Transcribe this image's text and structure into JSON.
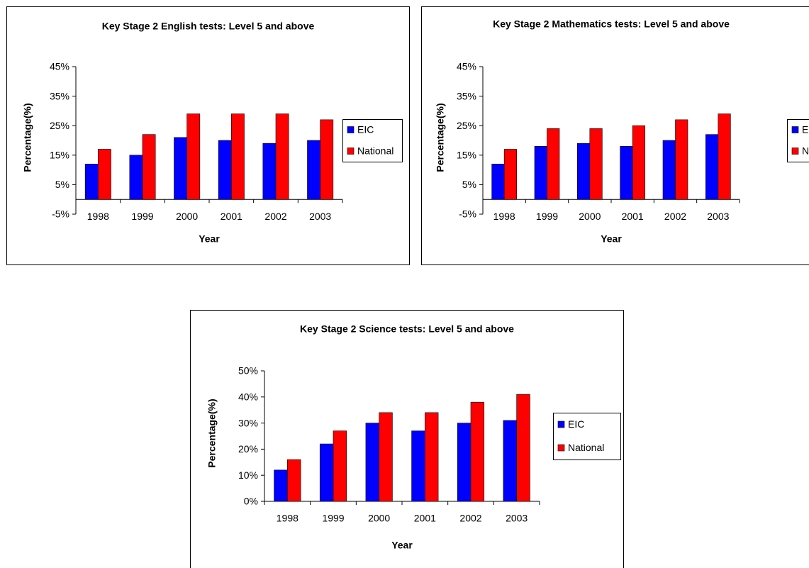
{
  "chart_data": [
    {
      "type": "bar",
      "title": "Key Stage 2 English tests: Level 5 and above",
      "x_label": "Year",
      "y_label": "Percentage(%)",
      "categories": [
        "1998",
        "1999",
        "2000",
        "2001",
        "2002",
        "2003"
      ],
      "series": [
        {
          "name": "EIC",
          "color": "#0000ff",
          "values": [
            12,
            15,
            21,
            20,
            19,
            20
          ]
        },
        {
          "name": "National",
          "color": "#ff0000",
          "values": [
            17,
            22,
            29,
            29,
            29,
            27
          ]
        }
      ],
      "ylim": [
        -5,
        45
      ],
      "yticks": [
        {
          "value": -5,
          "label": "-5%"
        },
        {
          "value": 5,
          "label": "5%"
        },
        {
          "value": 15,
          "label": "15%"
        },
        {
          "value": 25,
          "label": "25%"
        },
        {
          "value": 35,
          "label": "35%"
        },
        {
          "value": 45,
          "label": "45%"
        }
      ],
      "grid": false,
      "legend": "right"
    },
    {
      "type": "bar",
      "title": "Key Stage 2 Mathematics tests: Level 5 and above",
      "x_label": "Year",
      "y_label": "Percentage(%)",
      "categories": [
        "1998",
        "1999",
        "2000",
        "2001",
        "2002",
        "2003"
      ],
      "series": [
        {
          "name": "EIC",
          "color": "#0000ff",
          "values": [
            12,
            18,
            19,
            18,
            20,
            22
          ]
        },
        {
          "name": "National",
          "color": "#ff0000",
          "values": [
            17,
            24,
            24,
            25,
            27,
            29
          ]
        }
      ],
      "ylim": [
        -5,
        45
      ],
      "yticks": [
        {
          "value": -5,
          "label": "-5%"
        },
        {
          "value": 5,
          "label": "5%"
        },
        {
          "value": 15,
          "label": "15%"
        },
        {
          "value": 25,
          "label": "25%"
        },
        {
          "value": 35,
          "label": "35%"
        },
        {
          "value": 45,
          "label": "45%"
        }
      ],
      "grid": false,
      "legend": "right"
    },
    {
      "type": "bar",
      "title": "Key Stage 2 Science tests: Level 5 and above",
      "x_label": "Year",
      "y_label": "Percentage(%)",
      "categories": [
        "1998",
        "1999",
        "2000",
        "2001",
        "2002",
        "2003"
      ],
      "series": [
        {
          "name": "EIC",
          "color": "#0000ff",
          "values": [
            12,
            22,
            30,
            27,
            30,
            31
          ]
        },
        {
          "name": "National",
          "color": "#ff0000",
          "values": [
            16,
            27,
            34,
            34,
            38,
            41
          ]
        }
      ],
      "ylim": [
        0,
        50
      ],
      "yticks": [
        {
          "value": 0,
          "label": "0%"
        },
        {
          "value": 10,
          "label": "10%"
        },
        {
          "value": 20,
          "label": "20%"
        },
        {
          "value": 30,
          "label": "30%"
        },
        {
          "value": 40,
          "label": "40%"
        },
        {
          "value": 50,
          "label": "50%"
        }
      ],
      "grid": false,
      "legend": "right"
    }
  ]
}
